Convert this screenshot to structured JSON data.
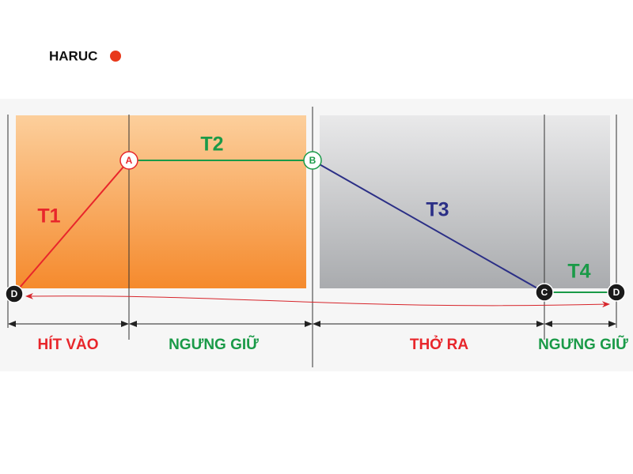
{
  "logo": {
    "text": "HARUC"
  },
  "segments": [
    {
      "label": "T1"
    },
    {
      "label": "T2"
    },
    {
      "label": "T3"
    },
    {
      "label": "T4"
    }
  ],
  "nodes": [
    {
      "label": "D"
    },
    {
      "label": "A"
    },
    {
      "label": "B"
    },
    {
      "label": "C"
    },
    {
      "label": "D"
    }
  ],
  "phases": [
    {
      "label": "HÍT VÀO"
    },
    {
      "label": "NGƯNG GIỮ"
    },
    {
      "label": "THỞ RA"
    },
    {
      "label": "NGƯNG GIỮ"
    }
  ]
}
